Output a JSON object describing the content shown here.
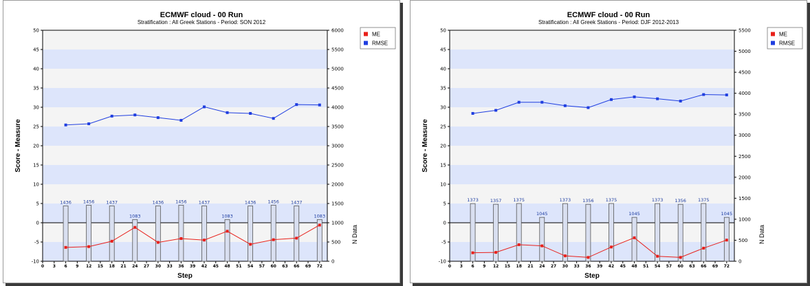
{
  "chart_data": [
    {
      "type": "line",
      "title": "ECMWF cloud - 00 Run",
      "subtitle": "Stratification : All Greek Stations - Period: SON 2012",
      "xlabel": "Step",
      "ylabel": "Score - Measure",
      "y2label": "N Data",
      "x_ticks": [
        0,
        3,
        6,
        9,
        12,
        15,
        18,
        21,
        24,
        27,
        30,
        33,
        36,
        39,
        42,
        45,
        48,
        51,
        54,
        57,
        60,
        63,
        66,
        69,
        72
      ],
      "ylim": [
        -10,
        50
      ],
      "y_ticks": [
        -10,
        -5,
        0,
        5,
        10,
        15,
        20,
        25,
        30,
        35,
        40,
        45,
        50
      ],
      "y2lim": [
        0,
        6000
      ],
      "y2_ticks": [
        0,
        500,
        1000,
        1500,
        2000,
        2500,
        3000,
        3500,
        4000,
        4500,
        5000,
        5500,
        6000
      ],
      "x": [
        6,
        12,
        18,
        24,
        30,
        36,
        42,
        48,
        54,
        60,
        66,
        72
      ],
      "series": [
        {
          "name": "ME",
          "color": "#e8201a",
          "values": [
            -6.4,
            -6.2,
            -4.8,
            -1.2,
            -5.1,
            -4.1,
            -4.5,
            -2.2,
            -5.6,
            -4.4,
            -4.0,
            -0.6
          ]
        },
        {
          "name": "RMSE",
          "color": "#1f3ee0",
          "values": [
            25.4,
            25.7,
            27.7,
            28.0,
            27.3,
            26.6,
            30.1,
            28.6,
            28.4,
            27.1,
            30.7,
            30.6
          ]
        }
      ],
      "n_data": [
        1436,
        1456,
        1437,
        1083,
        1436,
        1456,
        1437,
        1083,
        1436,
        1456,
        1437,
        1083
      ],
      "legend_position": "top-right"
    },
    {
      "type": "line",
      "title": "ECMWF cloud - 00 Run",
      "subtitle": "Stratification : All Greek Stations - Period: DJF 2012-2013",
      "xlabel": "Step",
      "ylabel": "Score - Measure",
      "y2label": "N Data",
      "x_ticks": [
        0,
        3,
        6,
        9,
        12,
        15,
        18,
        21,
        24,
        27,
        30,
        33,
        36,
        39,
        42,
        45,
        48,
        51,
        54,
        57,
        60,
        63,
        66,
        69,
        72
      ],
      "ylim": [
        -10,
        50
      ],
      "y_ticks": [
        -10,
        -5,
        0,
        5,
        10,
        15,
        20,
        25,
        30,
        35,
        40,
        45,
        50
      ],
      "y2lim": [
        0,
        5500
      ],
      "y2_ticks": [
        0,
        500,
        1000,
        1500,
        2000,
        2500,
        3000,
        3500,
        4000,
        4500,
        5000,
        5500
      ],
      "x": [
        6,
        12,
        18,
        24,
        30,
        36,
        42,
        48,
        54,
        60,
        66,
        72
      ],
      "series": [
        {
          "name": "ME",
          "color": "#e8201a",
          "values": [
            -7.8,
            -7.7,
            -5.7,
            -6.0,
            -8.6,
            -9.0,
            -6.3,
            -3.9,
            -8.7,
            -9.0,
            -6.6,
            -4.5
          ]
        },
        {
          "name": "RMSE",
          "color": "#1f3ee0",
          "values": [
            28.4,
            29.2,
            31.3,
            31.3,
            30.4,
            29.9,
            32.0,
            32.7,
            32.2,
            31.6,
            33.3,
            33.2
          ]
        }
      ],
      "n_data": [
        1373,
        1357,
        1375,
        1045,
        1373,
        1356,
        1375,
        1045,
        1373,
        1356,
        1375,
        1045
      ],
      "legend_position": "top-right"
    }
  ]
}
